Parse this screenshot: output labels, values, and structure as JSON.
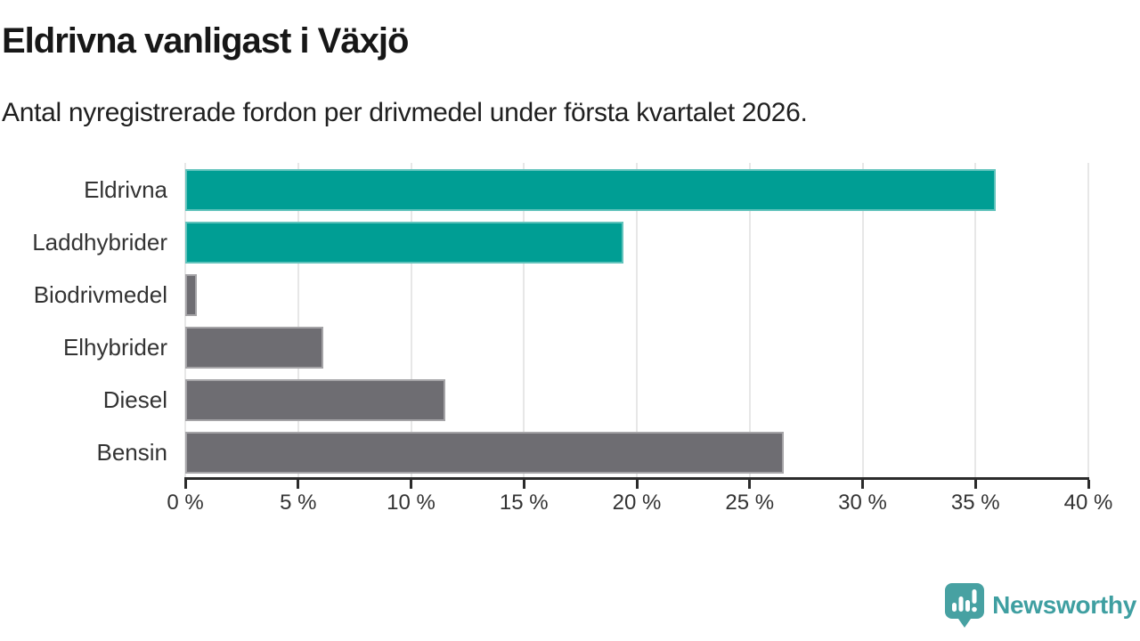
{
  "header": {
    "title": "Eldrivna vanligast i Växjö",
    "subtitle": "Antal nyregistrerade fordon per drivmedel under första kvartalet 2026."
  },
  "chart_data": {
    "type": "bar",
    "orientation": "horizontal",
    "title": "Eldrivna vanligast i Växjö",
    "subtitle": "Antal nyregistrerade fordon per drivmedel under första kvartalet 2026.",
    "categories": [
      "Eldrivna",
      "Laddhybrider",
      "Biodrivmedel",
      "Elhybrider",
      "Diesel",
      "Bensin"
    ],
    "values": [
      35.9,
      19.4,
      0.5,
      6.1,
      11.5,
      26.5
    ],
    "bar_colors": [
      "#009e94",
      "#009e94",
      "#6e6d72",
      "#6e6d72",
      "#6e6d72",
      "#6e6d72"
    ],
    "xlabel": "",
    "ylabel": "",
    "xlim": [
      0,
      40
    ],
    "x_ticks": [
      0,
      5,
      10,
      15,
      20,
      25,
      30,
      35,
      40
    ],
    "x_tick_labels": [
      "0 %",
      "5 %",
      "10 %",
      "15 %",
      "20 %",
      "25 %",
      "30 %",
      "35 %",
      "40 %"
    ],
    "grid": "vertical-gridlines-on",
    "legend": "none"
  },
  "colors": {
    "highlight": "#009e94",
    "default_bar": "#6e6d72",
    "grid": "#e7e7e7",
    "axis": "#2b2b2b",
    "logo": "#47a1a2",
    "logo_text": "#3f9fa1"
  },
  "icons": {
    "logo": "speech-bubble-bar-chart-icon"
  },
  "footer": {
    "logo_text": "Newsworthy"
  }
}
